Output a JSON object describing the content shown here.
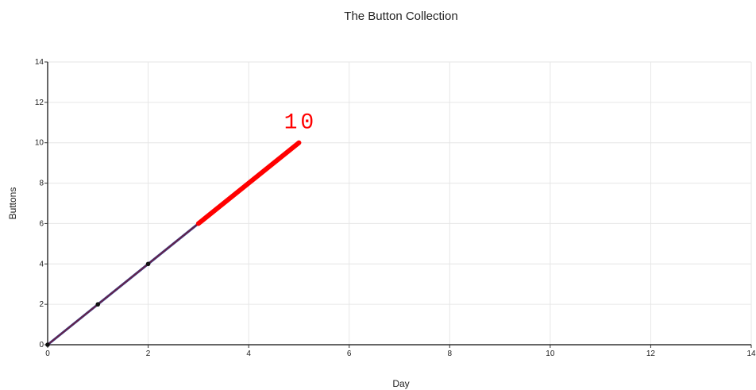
{
  "chart_data": {
    "type": "line",
    "title": "The Button Collection",
    "xlabel": "Day",
    "ylabel": "Buttons",
    "xlim": [
      0,
      14
    ],
    "ylim": [
      0,
      14
    ],
    "xticks": [
      0,
      2,
      4,
      6,
      8,
      10,
      12,
      14
    ],
    "yticks": [
      0,
      2,
      4,
      6,
      8,
      10,
      12,
      14
    ],
    "grid": true,
    "series": [
      {
        "values_x": [
          0,
          1,
          2,
          3
        ],
        "values_y": [
          0,
          2,
          4,
          6
        ],
        "color": "#6b1f3f",
        "style": "solid"
      },
      {
        "values_x": [
          3,
          5
        ],
        "values_y": [
          6,
          10
        ],
        "color": "#ff0000",
        "style": "bold-handdrawn"
      }
    ],
    "annotations": [
      {
        "text": "10",
        "x": 5,
        "y": 10,
        "color": "#ff0000"
      }
    ]
  }
}
